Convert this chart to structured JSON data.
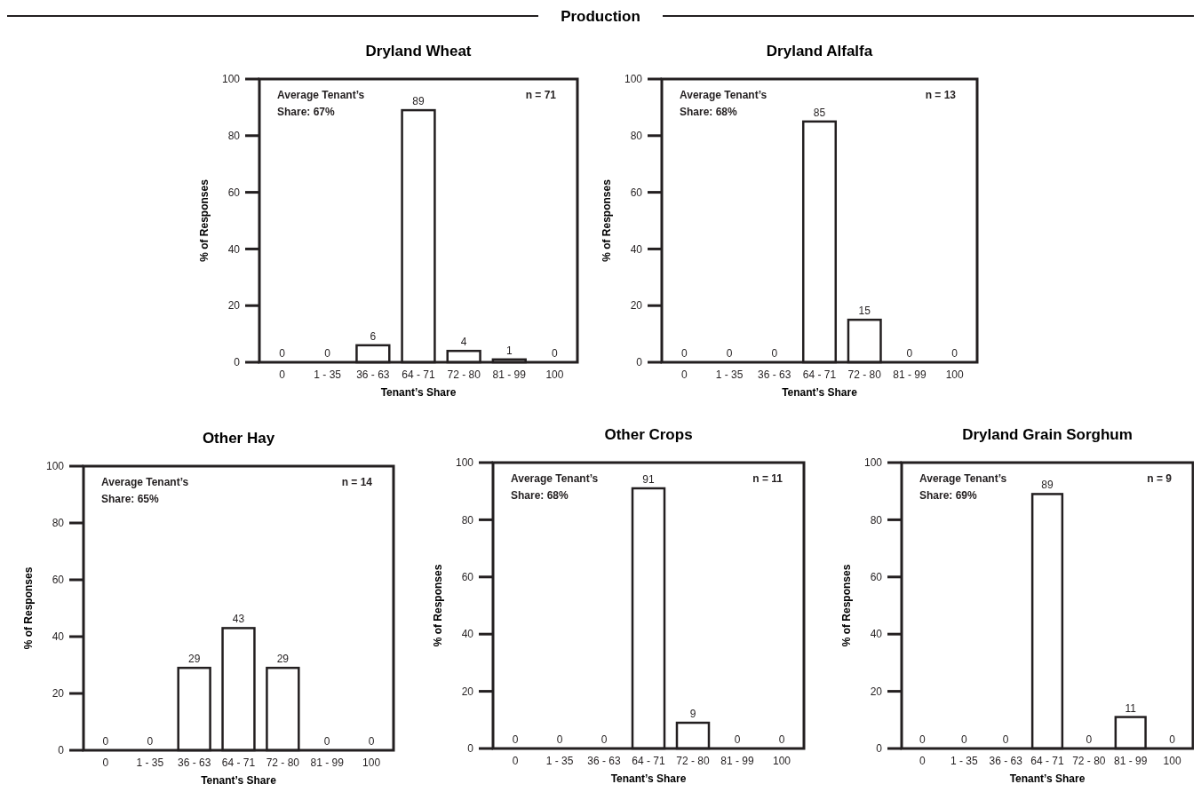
{
  "chart_data": [
    {
      "type": "bar",
      "subtitle": "Production",
      "title": "Dryland Wheat",
      "xlabel": "Tenant’s Share",
      "ylabel": "% of Responses",
      "categories": [
        "0",
        "1 - 35",
        "36 - 63",
        "64 - 71",
        "72 - 80",
        "81 - 99",
        "100"
      ],
      "values": [
        0,
        0,
        6,
        89,
        4,
        1,
        0
      ],
      "color": "#ffffff",
      "ylim": [
        0,
        100
      ],
      "yticks": [
        0,
        20,
        40,
        60,
        80,
        100
      ],
      "data_labels": true,
      "grid": false,
      "annotations": [
        "Average Tenant’s\nShare: 67%",
        "n = 71"
      ]
    },
    {
      "type": "bar",
      "title": "Dryland Alfalfa",
      "xlabel": "Tenant’s Share",
      "ylabel": "% of Responses",
      "categories": [
        "0",
        "1 - 35",
        "36 - 63",
        "64 - 71",
        "72 - 80",
        "81 - 99",
        "100"
      ],
      "values": [
        0,
        0,
        0,
        85,
        15,
        0,
        0
      ],
      "color": "#ffffff",
      "ylim": [
        0,
        100
      ],
      "yticks": [
        0,
        20,
        40,
        60,
        80,
        100
      ],
      "data_labels": true,
      "grid": false,
      "annotations": [
        "Average Tenant’s\nShare: 68%",
        "n = 13"
      ]
    },
    {
      "type": "bar",
      "title": "Other Hay",
      "xlabel": "Tenant’s Share",
      "ylabel": "% of Responses",
      "categories": [
        "0",
        "1 - 35",
        "36 - 63",
        "64 - 71",
        "72 - 80",
        "81 - 99",
        "100"
      ],
      "values": [
        0,
        0,
        29,
        43,
        29,
        0,
        0
      ],
      "color": "#ffffff",
      "ylim": [
        0,
        100
      ],
      "yticks": [
        0,
        20,
        40,
        60,
        80,
        100
      ],
      "data_labels": true,
      "grid": false,
      "annotations": [
        "Average Tenant’s\nShare: 65%",
        "n = 14"
      ]
    },
    {
      "type": "bar",
      "title": "Other Crops",
      "xlabel": "Tenant’s Share",
      "ylabel": "% of Responses",
      "categories": [
        "0",
        "1 - 35",
        "36 - 63",
        "64 - 71",
        "72 - 80",
        "81 - 99",
        "100"
      ],
      "values": [
        0,
        0,
        0,
        91,
        9,
        0,
        0
      ],
      "color": "#ffffff",
      "ylim": [
        0,
        100
      ],
      "yticks": [
        0,
        20,
        40,
        60,
        80,
        100
      ],
      "data_labels": true,
      "grid": false,
      "annotations": [
        "Average Tenant’s\nShare: 68%",
        "n = 11"
      ]
    },
    {
      "type": "bar",
      "title": "Dryland Grain Sorghum",
      "xlabel": "Tenant’s Share",
      "ylabel": "% of Responses",
      "categories": [
        "0",
        "1 - 35",
        "36 - 63",
        "64 - 71",
        "72 - 80",
        "81 - 99",
        "100"
      ],
      "values": [
        0,
        0,
        0,
        89,
        0,
        11,
        0
      ],
      "color": "#ffffff",
      "ylim": [
        0,
        100
      ],
      "yticks": [
        0,
        20,
        40,
        60,
        80,
        100
      ],
      "data_labels": true,
      "grid": false,
      "annotations": [
        "Average Tenant’s\nShare: 69%",
        "n = 9"
      ]
    }
  ]
}
